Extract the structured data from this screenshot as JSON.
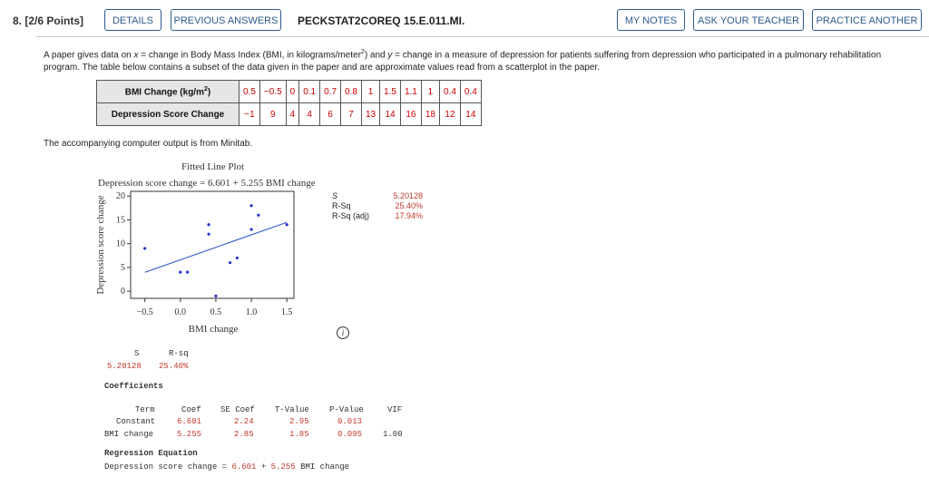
{
  "question": {
    "number_label": "8. [2/6 Points]",
    "id": "PECKSTAT2COREQ 15.E.011.MI."
  },
  "toolbar": {
    "details": "DETAILS",
    "previous_answers": "PREVIOUS ANSWERS",
    "my_notes": "MY NOTES",
    "ask_teacher": "ASK YOUR TEACHER",
    "practice_another": "PRACTICE ANOTHER"
  },
  "intro": {
    "p1": "A paper gives data on ",
    "x_var": "x",
    "p2": " = change in Body Mass Index (BMI, in kilograms/meter",
    "sup": "2",
    "p3": ") and ",
    "y_var": "y",
    "p4": " = change in a measure of depression for patients suffering from depression who participated in a pulmonary rehabilitation program. The table below contains a subset of the data given in the paper and are approximate values read from a scatterplot in the paper."
  },
  "table": {
    "row1_label": "BMI Change (kg/m",
    "row1_sup": "2",
    "row1_close": ")",
    "row1": [
      "0.5",
      "−0.5",
      "0",
      "0.1",
      "0.7",
      "0.8",
      "1",
      "1.5",
      "1.1",
      "1",
      "0.4",
      "0.4"
    ],
    "row2_label": "Depression Score Change",
    "row2": [
      "−1",
      "9",
      "4",
      "4",
      "6",
      "7",
      "13",
      "14",
      "16",
      "18",
      "12",
      "14"
    ]
  },
  "minitab_note": "The accompanying computer output is from Minitab.",
  "plot": {
    "title": "Fitted Line Plot",
    "equation": "Depression score change = 6.601 + 5.255 BMI change",
    "xlabel": "BMI change",
    "ylabel": "Depression score change",
    "x_ticks": [
      "−0.5",
      "0.0",
      "0.5",
      "1.0",
      "1.5"
    ],
    "y_ticks": [
      "20",
      "15",
      "10",
      "5",
      "0"
    ],
    "stats": {
      "s_label": "S",
      "s_value": "5.20128",
      "rsq_label": "R-Sq",
      "rsq_value": "25.40%",
      "rsq_adj_label": "R-Sq (adj)",
      "rsq_adj_value": "17.94%"
    }
  },
  "chart_data": {
    "type": "scatter",
    "title": "Fitted Line Plot",
    "subtitle": "Depression score change = 6.601 + 5.255 BMI change",
    "xlabel": "BMI change",
    "ylabel": "Depression score change",
    "xlim": [
      -0.7,
      1.6
    ],
    "ylim": [
      -1.5,
      21
    ],
    "x": [
      0.5,
      -0.5,
      0,
      0.1,
      0.7,
      0.8,
      1,
      1.5,
      1.1,
      1,
      0.4,
      0.4
    ],
    "y": [
      -1,
      9,
      4,
      4,
      6,
      7,
      13,
      14,
      16,
      18,
      12,
      14
    ],
    "fit": {
      "intercept": 6.601,
      "slope": 5.255
    },
    "point_color": "#2233cc",
    "line_color": "#4466cc"
  },
  "info_icon_glyph": "i",
  "output": {
    "s_header": "S",
    "rsq_header": "R-sq",
    "s_value": "5.20128",
    "rsq_value": "25.40%",
    "coef_title": "Coefficients",
    "coef_headers": [
      "Term",
      "Coef",
      "SE Coef",
      "T-Value",
      "P-Value",
      "VIF"
    ],
    "rows": [
      {
        "term": "Constant",
        "coef": "6.601",
        "se": "2.24",
        "t": "2.95",
        "p": "0.013",
        "vif": ""
      },
      {
        "term": "BMI change",
        "coef": "5.255",
        "se": "2.85",
        "t": "1.85",
        "p": "0.095",
        "vif": "1.00"
      }
    ],
    "reg_title": "Regression Equation",
    "reg_lhs": "Depression score change = ",
    "reg_intercept": "6.601",
    "reg_plus": " + ",
    "reg_slope": "5.255",
    "reg_rhs": " BMI change"
  }
}
